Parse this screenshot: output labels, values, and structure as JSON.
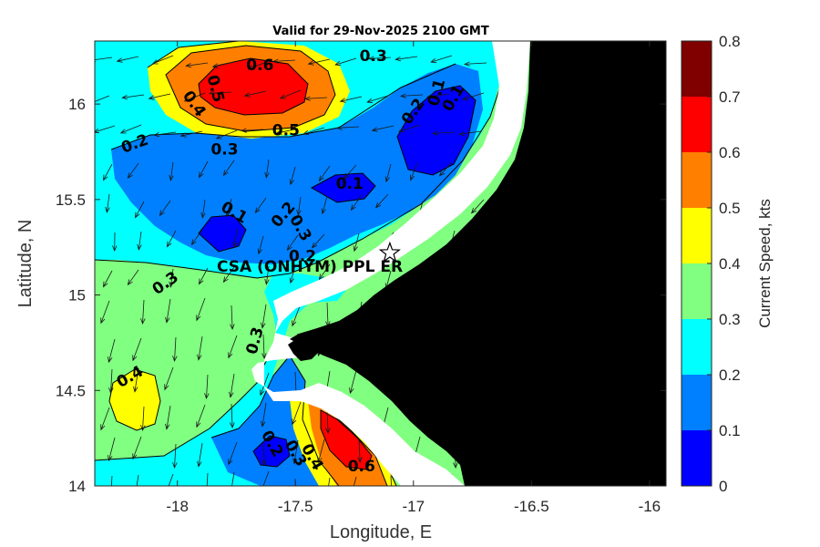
{
  "title": "Valid for 29-Nov-2025 2100 GMT",
  "chart_data": {
    "type": "contourf-map",
    "xlabel": "Longitude, E",
    "ylabel": "Latitude, N",
    "xlim": [
      -18.35,
      -15.93
    ],
    "ylim": [
      14.0,
      16.33
    ],
    "xticks": [
      -18,
      -17.5,
      -17,
      -16.5,
      -16
    ],
    "yticks": [
      14,
      14.5,
      15,
      15.5,
      16
    ],
    "xtick_labels": [
      "-18",
      "-17.5",
      "-17",
      "-16.5",
      "-16"
    ],
    "ytick_labels": [
      "14",
      "14.5",
      "15",
      "15.5",
      "16"
    ],
    "colorbar": {
      "label": "Current Speed, kts",
      "range": [
        0,
        0.8
      ],
      "ticks": [
        0,
        0.1,
        0.2,
        0.3,
        0.4,
        0.5,
        0.6,
        0.7,
        0.8
      ],
      "tick_labels": [
        "0",
        "0.1",
        "0.2",
        "0.3",
        "0.4",
        "0.5",
        "0.6",
        "0.7",
        "0.8"
      ],
      "colors": [
        "#0000ff",
        "#0080ff",
        "#00ffff",
        "#80ff80",
        "#ffff00",
        "#ff8000",
        "#ff0000",
        "#800000"
      ]
    },
    "land_color": "#000000",
    "mask_color": "#ffffff",
    "station": {
      "name": "CSA (ONHYM) PPL ER",
      "lon": -17.1,
      "lat": 15.22,
      "marker": "star"
    },
    "contour_labels": [
      {
        "text": "0.6",
        "lon": -17.65,
        "lat": 16.2,
        "rot": 0
      },
      {
        "text": "0.5",
        "lon": -17.84,
        "lat": 16.08,
        "rot": 75
      },
      {
        "text": "0.4",
        "lon": -17.93,
        "lat": 16.0,
        "rot": 55
      },
      {
        "text": "0.5",
        "lon": -17.54,
        "lat": 15.86,
        "rot": 0
      },
      {
        "text": "0.3",
        "lon": -17.17,
        "lat": 16.25,
        "rot": 0
      },
      {
        "text": "0.2",
        "lon": -18.18,
        "lat": 15.79,
        "rot": -20
      },
      {
        "text": "0.3",
        "lon": -17.8,
        "lat": 15.76,
        "rot": 0
      },
      {
        "text": "0.2",
        "lon": -17.0,
        "lat": 15.96,
        "rot": -55
      },
      {
        "text": "0.1",
        "lon": -16.9,
        "lat": 16.06,
        "rot": -75
      },
      {
        "text": "0.1",
        "lon": -16.83,
        "lat": 16.03,
        "rot": -60
      },
      {
        "text": "0.1",
        "lon": -17.27,
        "lat": 15.58,
        "rot": 0
      },
      {
        "text": "0.1",
        "lon": -17.76,
        "lat": 15.43,
        "rot": 30
      },
      {
        "text": "0.2",
        "lon": -17.55,
        "lat": 15.42,
        "rot": -50
      },
      {
        "text": "0.3",
        "lon": -17.48,
        "lat": 15.35,
        "rot": 60
      },
      {
        "text": "0.2",
        "lon": -17.47,
        "lat": 15.2,
        "rot": 0
      },
      {
        "text": "0.3",
        "lon": -18.05,
        "lat": 15.06,
        "rot": -35
      },
      {
        "text": "0.3",
        "lon": -17.67,
        "lat": 14.76,
        "rot": -75
      },
      {
        "text": "0.4",
        "lon": -18.2,
        "lat": 14.57,
        "rot": -30
      },
      {
        "text": "0.2",
        "lon": -17.6,
        "lat": 14.22,
        "rot": 60
      },
      {
        "text": "0.3",
        "lon": -17.5,
        "lat": 14.17,
        "rot": 60
      },
      {
        "text": "0.4",
        "lon": -17.43,
        "lat": 14.15,
        "rot": 60
      },
      {
        "text": "0.6",
        "lon": -17.22,
        "lat": 14.1,
        "rot": 0
      }
    ]
  }
}
